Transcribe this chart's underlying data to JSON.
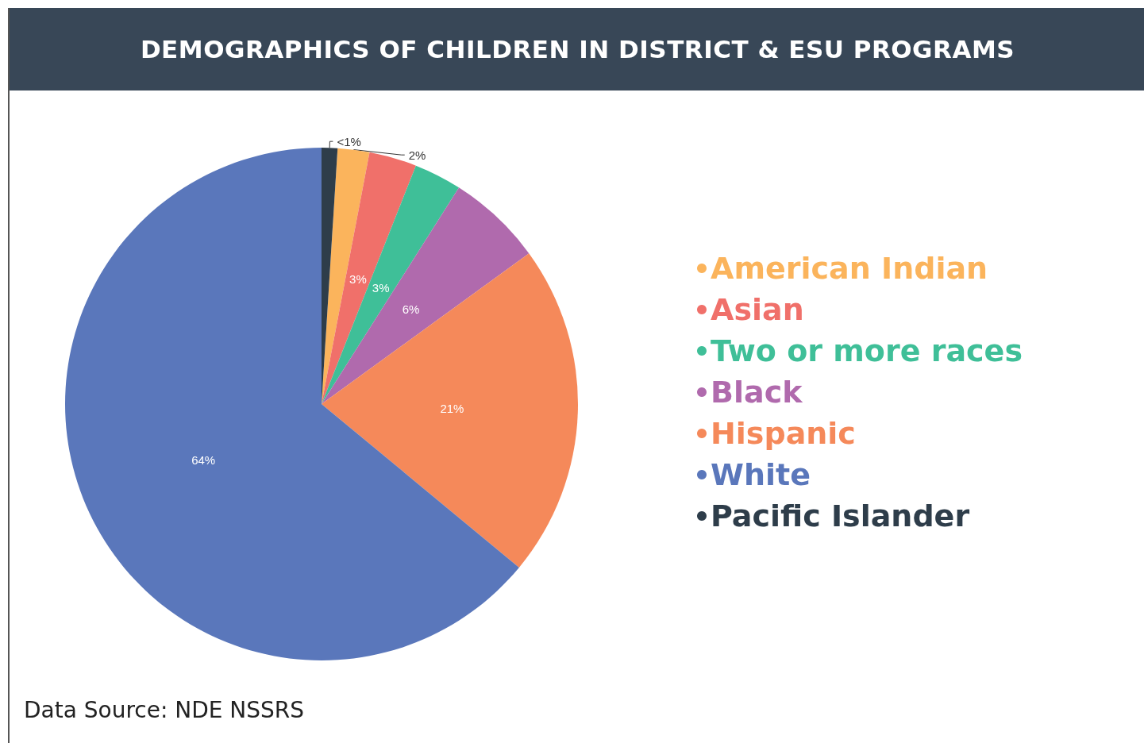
{
  "chart_data": {
    "type": "pie",
    "title": "DEMOGRAPHICS OF CHILDREN IN DISTRICT & ESU PROGRAMS",
    "categories": [
      "American Indian",
      "Asian",
      "Two or more races",
      "Black",
      "Hispanic",
      "White",
      "Pacific Islander"
    ],
    "values": [
      2,
      3,
      3,
      6,
      21,
      64,
      1
    ],
    "value_labels": [
      "2%",
      "3%",
      "3%",
      "6%",
      "21%",
      "64%",
      "<1%"
    ],
    "colors": [
      "#fbb45c",
      "#f0706a",
      "#3fbf98",
      "#b06aad",
      "#f5895a",
      "#5a77bb",
      "#2e3d4a"
    ],
    "legend": "right",
    "annotations": [
      "Data Source: NDE NSSRS"
    ]
  }
}
